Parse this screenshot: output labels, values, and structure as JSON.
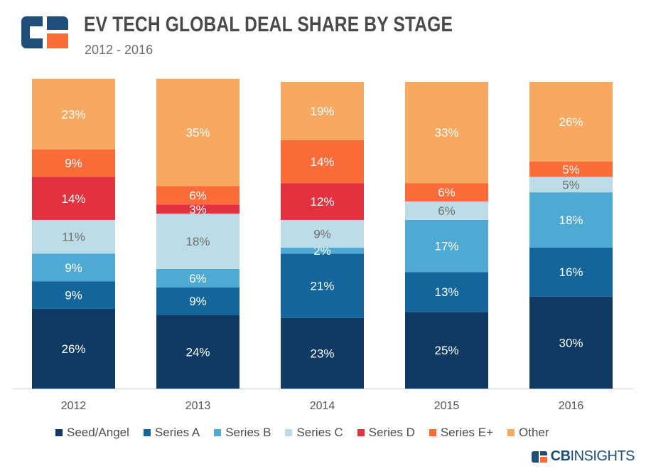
{
  "header": {
    "title": "EV TECH GLOBAL DEAL SHARE BY STAGE",
    "subtitle": "2012 - 2016"
  },
  "branding": {
    "logo_icon": "cb-insights-logo-icon",
    "brand_bold": "CB",
    "brand_light": "INSIGHTS"
  },
  "chart_data": {
    "type": "bar",
    "stacked": true,
    "title": "EV TECH GLOBAL DEAL SHARE BY STAGE",
    "subtitle": "2012 - 2016",
    "xlabel": "",
    "ylabel": "",
    "ylim": [
      0,
      100
    ],
    "grid": false,
    "legend_position": "bottom",
    "categories": [
      "2012",
      "2013",
      "2014",
      "2015",
      "2016"
    ],
    "series": [
      {
        "name": "Seed/Angel",
        "color": "#0f3a63",
        "label_color": "#ffffff",
        "values": [
          26,
          24,
          23,
          25,
          30
        ],
        "labels": [
          "26%",
          "24%",
          "23%",
          "25%",
          "30%"
        ]
      },
      {
        "name": "Series A",
        "color": "#13659c",
        "label_color": "#ffffff",
        "values": [
          9,
          9,
          21,
          13,
          16
        ],
        "labels": [
          "9%",
          "9%",
          "21%",
          "13%",
          "16%"
        ]
      },
      {
        "name": "Series B",
        "color": "#4ea9d3",
        "label_color": "#ffffff",
        "values": [
          9,
          6,
          2,
          17,
          18
        ],
        "labels": [
          "9%",
          "6%",
          "2%",
          "17%",
          "18%"
        ]
      },
      {
        "name": "Series C",
        "color": "#bcdde8",
        "label_color": "#6f6f6f",
        "values": [
          11,
          18,
          9,
          6,
          5
        ],
        "labels": [
          "11%",
          "18%",
          "9%",
          "6%",
          "5%"
        ]
      },
      {
        "name": "Series D",
        "color": "#e2323f",
        "label_color": "#ffffff",
        "values": [
          14,
          3,
          12,
          0,
          0
        ],
        "labels": [
          "14%",
          "3%",
          "12%",
          "",
          ""
        ]
      },
      {
        "name": "Series E+",
        "color": "#fb6c38",
        "label_color": "#ffffff",
        "values": [
          9,
          6,
          14,
          6,
          5
        ],
        "labels": [
          "9%",
          "6%",
          "14%",
          "6%",
          "5%"
        ]
      },
      {
        "name": "Other",
        "color": "#f7a962",
        "label_color": "#ffffff",
        "values": [
          23,
          35,
          19,
          33,
          26
        ],
        "labels": [
          "23%",
          "35%",
          "19%",
          "33%",
          "26%"
        ]
      }
    ]
  }
}
